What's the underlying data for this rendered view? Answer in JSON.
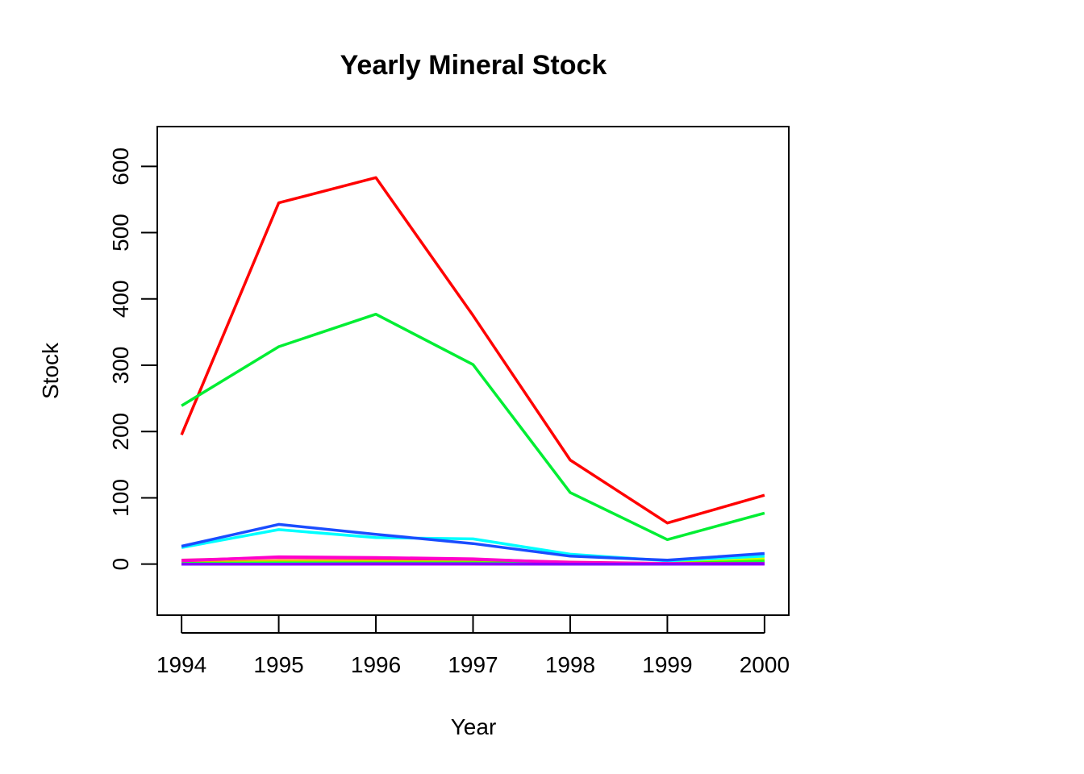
{
  "chart_data": {
    "type": "line",
    "title": "Yearly Mineral Stock",
    "xlabel": "Year",
    "ylabel": "Stock",
    "x": [
      1994,
      1995,
      1996,
      1997,
      1998,
      1999,
      2000
    ],
    "xlim": [
      1993.75,
      2000.25
    ],
    "ylim": [
      -77,
      660
    ],
    "x_ticks": [
      "1994",
      "1995",
      "1996",
      "1997",
      "1998",
      "1999",
      "2000"
    ],
    "y_ticks": [
      "0",
      "100",
      "200",
      "300",
      "400",
      "500",
      "600"
    ],
    "grid": false,
    "legend": "none",
    "series": [
      {
        "color": "#ff9900",
        "values": [
          2,
          5,
          5,
          4,
          2,
          1,
          3
        ]
      },
      {
        "color": "#ccff00",
        "values": [
          1,
          3,
          3,
          3,
          1,
          1,
          8
        ]
      },
      {
        "color": "#33ff00",
        "values": [
          1,
          2,
          2,
          2,
          1,
          0.5,
          5
        ]
      },
      {
        "color": "#00ff66",
        "values": [
          0.5,
          1,
          1,
          1,
          0.5,
          0.5,
          2
        ]
      },
      {
        "color": "#00ffff",
        "values": [
          25,
          52,
          40,
          38,
          15,
          5,
          12
        ]
      },
      {
        "color": "#cc00ff",
        "values": [
          0,
          0,
          0,
          0,
          0,
          0,
          0
        ]
      },
      {
        "color": "#ff0099",
        "values": [
          6,
          10,
          9,
          7,
          3,
          1,
          1
        ]
      },
      {
        "color": "#ff00cc",
        "values": [
          5,
          11,
          10,
          8,
          2,
          0.5,
          0.5
        ]
      },
      {
        "color": "#ff0000",
        "values": [
          195,
          545,
          583,
          375,
          157,
          62,
          104
        ]
      },
      {
        "color": "#00ee33",
        "values": [
          239,
          328,
          377,
          301,
          108,
          37,
          77
        ]
      },
      {
        "color": "#1a4dff",
        "values": [
          27,
          60,
          45,
          31,
          12,
          6,
          16
        ]
      },
      {
        "color": "#8800ff",
        "values": [
          0,
          0,
          0.5,
          0.5,
          0,
          0,
          0.5
        ]
      }
    ]
  }
}
